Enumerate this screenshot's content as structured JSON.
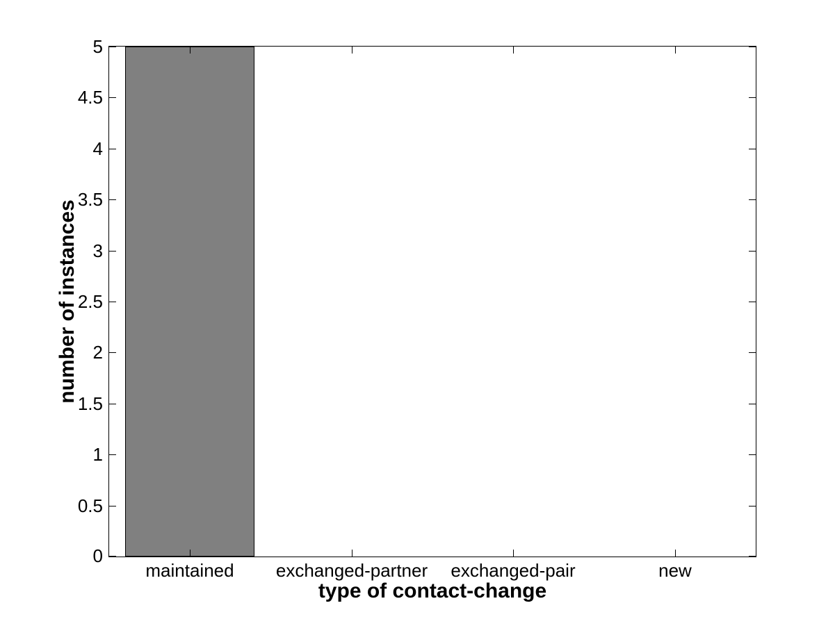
{
  "chart_data": {
    "type": "bar",
    "title": "",
    "xlabel": "type of contact-change",
    "ylabel": "number of instances",
    "categories": [
      "maintained",
      "exchanged-partner",
      "exchanged-pair",
      "new"
    ],
    "values": [
      5,
      0,
      0,
      0
    ],
    "ylim": [
      0,
      5
    ],
    "yticks": [
      0,
      0.5,
      1,
      1.5,
      2,
      2.5,
      3,
      3.5,
      4,
      4.5,
      5
    ],
    "ytick_labels": [
      "0",
      "0.5",
      "1",
      "1.5",
      "2",
      "2.5",
      "3",
      "3.5",
      "4",
      "4.5",
      "5"
    ],
    "bar_width_fraction": 0.8,
    "bar_color": "#808080",
    "bar_edge_color": "#000000",
    "axis_color": "#000000",
    "text_color": "#000000",
    "background_color": "#ffffff",
    "grid": false,
    "legend": null,
    "tick_direction": "in",
    "box": true
  }
}
